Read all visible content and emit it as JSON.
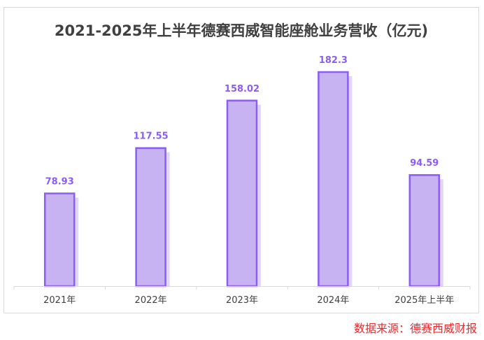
{
  "chart_data": {
    "type": "bar",
    "title": "2021-2025年上半年德赛西威智能座舱业务营收（亿元)",
    "categories": [
      "2021年",
      "2022年",
      "2023年",
      "2024年",
      "2025年上半年"
    ],
    "values": [
      78.93,
      117.55,
      158.02,
      182.3,
      94.59
    ],
    "value_labels": [
      "78.93",
      "117.55",
      "158.02",
      "182.3",
      "94.59"
    ],
    "xlabel": "",
    "ylabel": "",
    "ylim": [
      0,
      190
    ],
    "grid": false,
    "legend": "none",
    "colors": {
      "bar_fill": "#c8b3f2",
      "bar_outline": "#8b5cf6",
      "bar_shadow": "#d9ccf5",
      "value_label": "#8b5cf6",
      "axis": "#d9d9d9",
      "tick_label": "#404040"
    }
  },
  "source_note": "数据来源：德赛西威财报"
}
